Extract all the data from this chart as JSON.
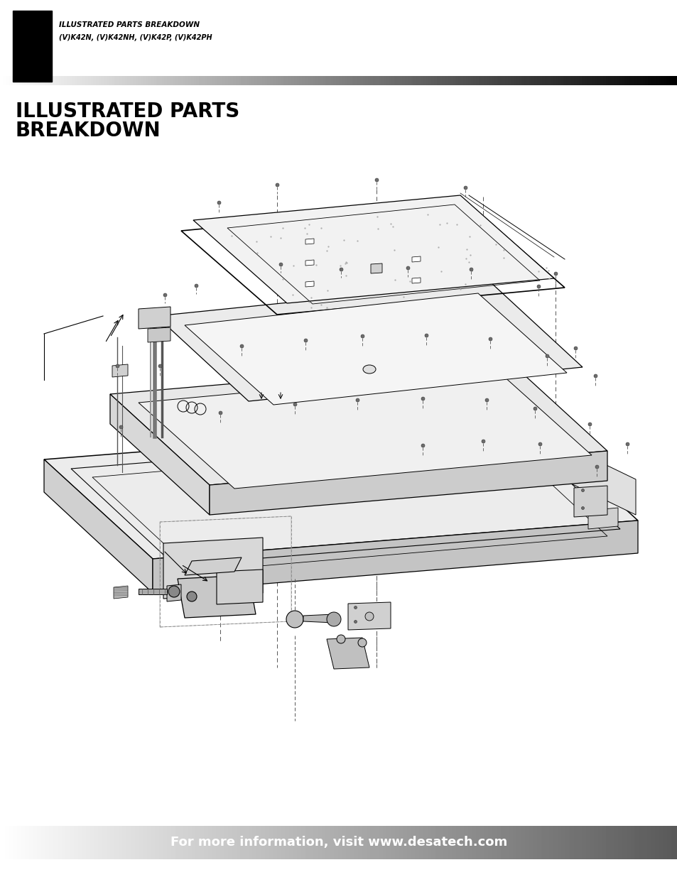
{
  "header_box_color": "#000000",
  "header_text_line1": "ILLUSTRATED PARTS BREAKDOWN",
  "header_text_line2": "(V)K42N, (V)K42NH, (V)K42P, (V)K42PH",
  "header_text_color": "#000000",
  "title_line1": "ILLUSTRATED PARTS",
  "title_line2": "BREAKDOWN",
  "title_color": "#000000",
  "title_fontsize": 20,
  "footer_text": "For more information, visit www.desatech.com",
  "footer_text_color": "#ffffff",
  "footer_fontsize": 13,
  "bg_color": "#ffffff",
  "page_width": 9.54,
  "page_height": 12.35
}
